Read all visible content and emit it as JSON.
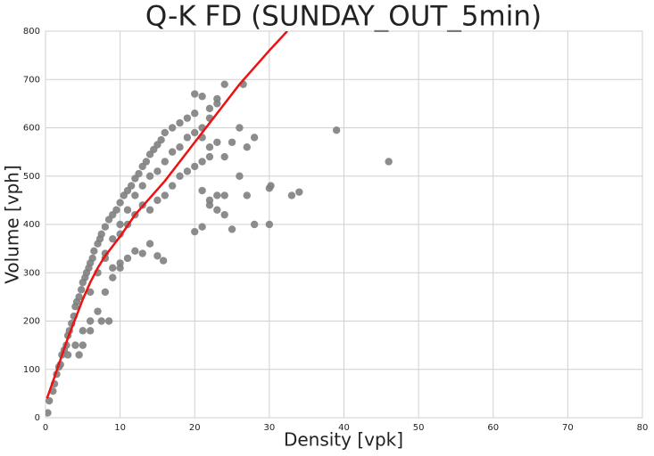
{
  "chart_data": {
    "type": "scatter",
    "title": "Q-K FD (SUNDAY_OUT_5min)",
    "x_label": "Density [vpk]",
    "y_label": "Volume [vph]",
    "xlim": [
      0,
      80
    ],
    "xticks": [
      0,
      10,
      20,
      30,
      40,
      50,
      60,
      70,
      80
    ],
    "ylim": [
      0,
      800
    ],
    "yticks": [
      0,
      100,
      200,
      300,
      400,
      500,
      600,
      700,
      800
    ],
    "grid": true,
    "points": {
      "color": "#808080",
      "x": [
        0.3,
        0.5,
        1,
        1.2,
        1.5,
        1.8,
        2,
        2.2,
        2.5,
        2.8,
        3,
        3.2,
        3.5,
        3.8,
        4,
        4.2,
        4.5,
        4.8,
        5,
        5.3,
        5.5,
        5.8,
        6,
        6.3,
        6.5,
        7,
        7.3,
        7.5,
        8,
        8.5,
        9,
        9.5,
        10,
        10.5,
        11,
        11.5,
        12,
        12.5,
        13,
        13.5,
        14,
        14.5,
        15,
        15.5,
        16,
        17,
        18,
        19,
        20,
        3,
        4,
        5,
        6,
        7,
        7.5,
        8,
        8.5,
        9,
        10,
        11,
        12,
        13,
        14,
        15,
        15.8,
        10,
        11,
        12,
        13,
        14,
        15,
        16,
        17,
        18,
        19,
        20,
        21,
        22,
        6,
        7,
        8,
        9,
        10,
        11,
        12,
        13,
        14,
        15,
        16,
        17,
        18,
        19,
        20,
        21,
        22,
        23,
        24,
        26.5,
        21,
        22,
        23,
        24,
        25,
        26,
        27,
        28,
        21,
        22,
        23,
        24,
        25,
        23,
        26,
        27,
        28,
        30,
        30,
        30.2,
        33,
        34,
        39,
        46,
        20,
        21,
        22,
        24,
        20,
        21,
        22,
        23,
        4.5,
        5,
        6,
        8,
        9,
        10
      ],
      "y": [
        10,
        35,
        55,
        70,
        90,
        105,
        110,
        130,
        140,
        150,
        170,
        180,
        195,
        210,
        230,
        240,
        250,
        265,
        280,
        290,
        300,
        310,
        320,
        330,
        345,
        360,
        370,
        380,
        395,
        410,
        420,
        430,
        445,
        460,
        470,
        480,
        495,
        505,
        520,
        530,
        545,
        555,
        565,
        575,
        590,
        600,
        610,
        620,
        630,
        130,
        150,
        180,
        200,
        220,
        200,
        260,
        200,
        290,
        320,
        330,
        345,
        340,
        360,
        335,
        325,
        380,
        400,
        420,
        440,
        430,
        450,
        460,
        480,
        500,
        510,
        520,
        530,
        540,
        260,
        300,
        340,
        370,
        400,
        430,
        460,
        480,
        500,
        510,
        530,
        550,
        560,
        580,
        590,
        600,
        620,
        650,
        690,
        690,
        580,
        560,
        570,
        540,
        570,
        600,
        560,
        580,
        470,
        450,
        430,
        420,
        390,
        460,
        500,
        460,
        400,
        400,
        475,
        480,
        460,
        467,
        595,
        530,
        385,
        395,
        440,
        460,
        670,
        665,
        640,
        660,
        130,
        150,
        180,
        330,
        310,
        310
      ]
    },
    "fit": {
      "color": "#ee1111",
      "x": [
        0.2,
        1,
        2,
        3,
        4,
        5,
        6,
        7,
        8,
        10,
        12,
        14,
        16,
        18,
        20,
        22,
        24,
        26,
        28,
        30,
        32.4
      ],
      "y": [
        40,
        75,
        120,
        165,
        205,
        245,
        280,
        310,
        335,
        375,
        420,
        455,
        490,
        530,
        570,
        610,
        650,
        690,
        725,
        760,
        800
      ]
    }
  }
}
